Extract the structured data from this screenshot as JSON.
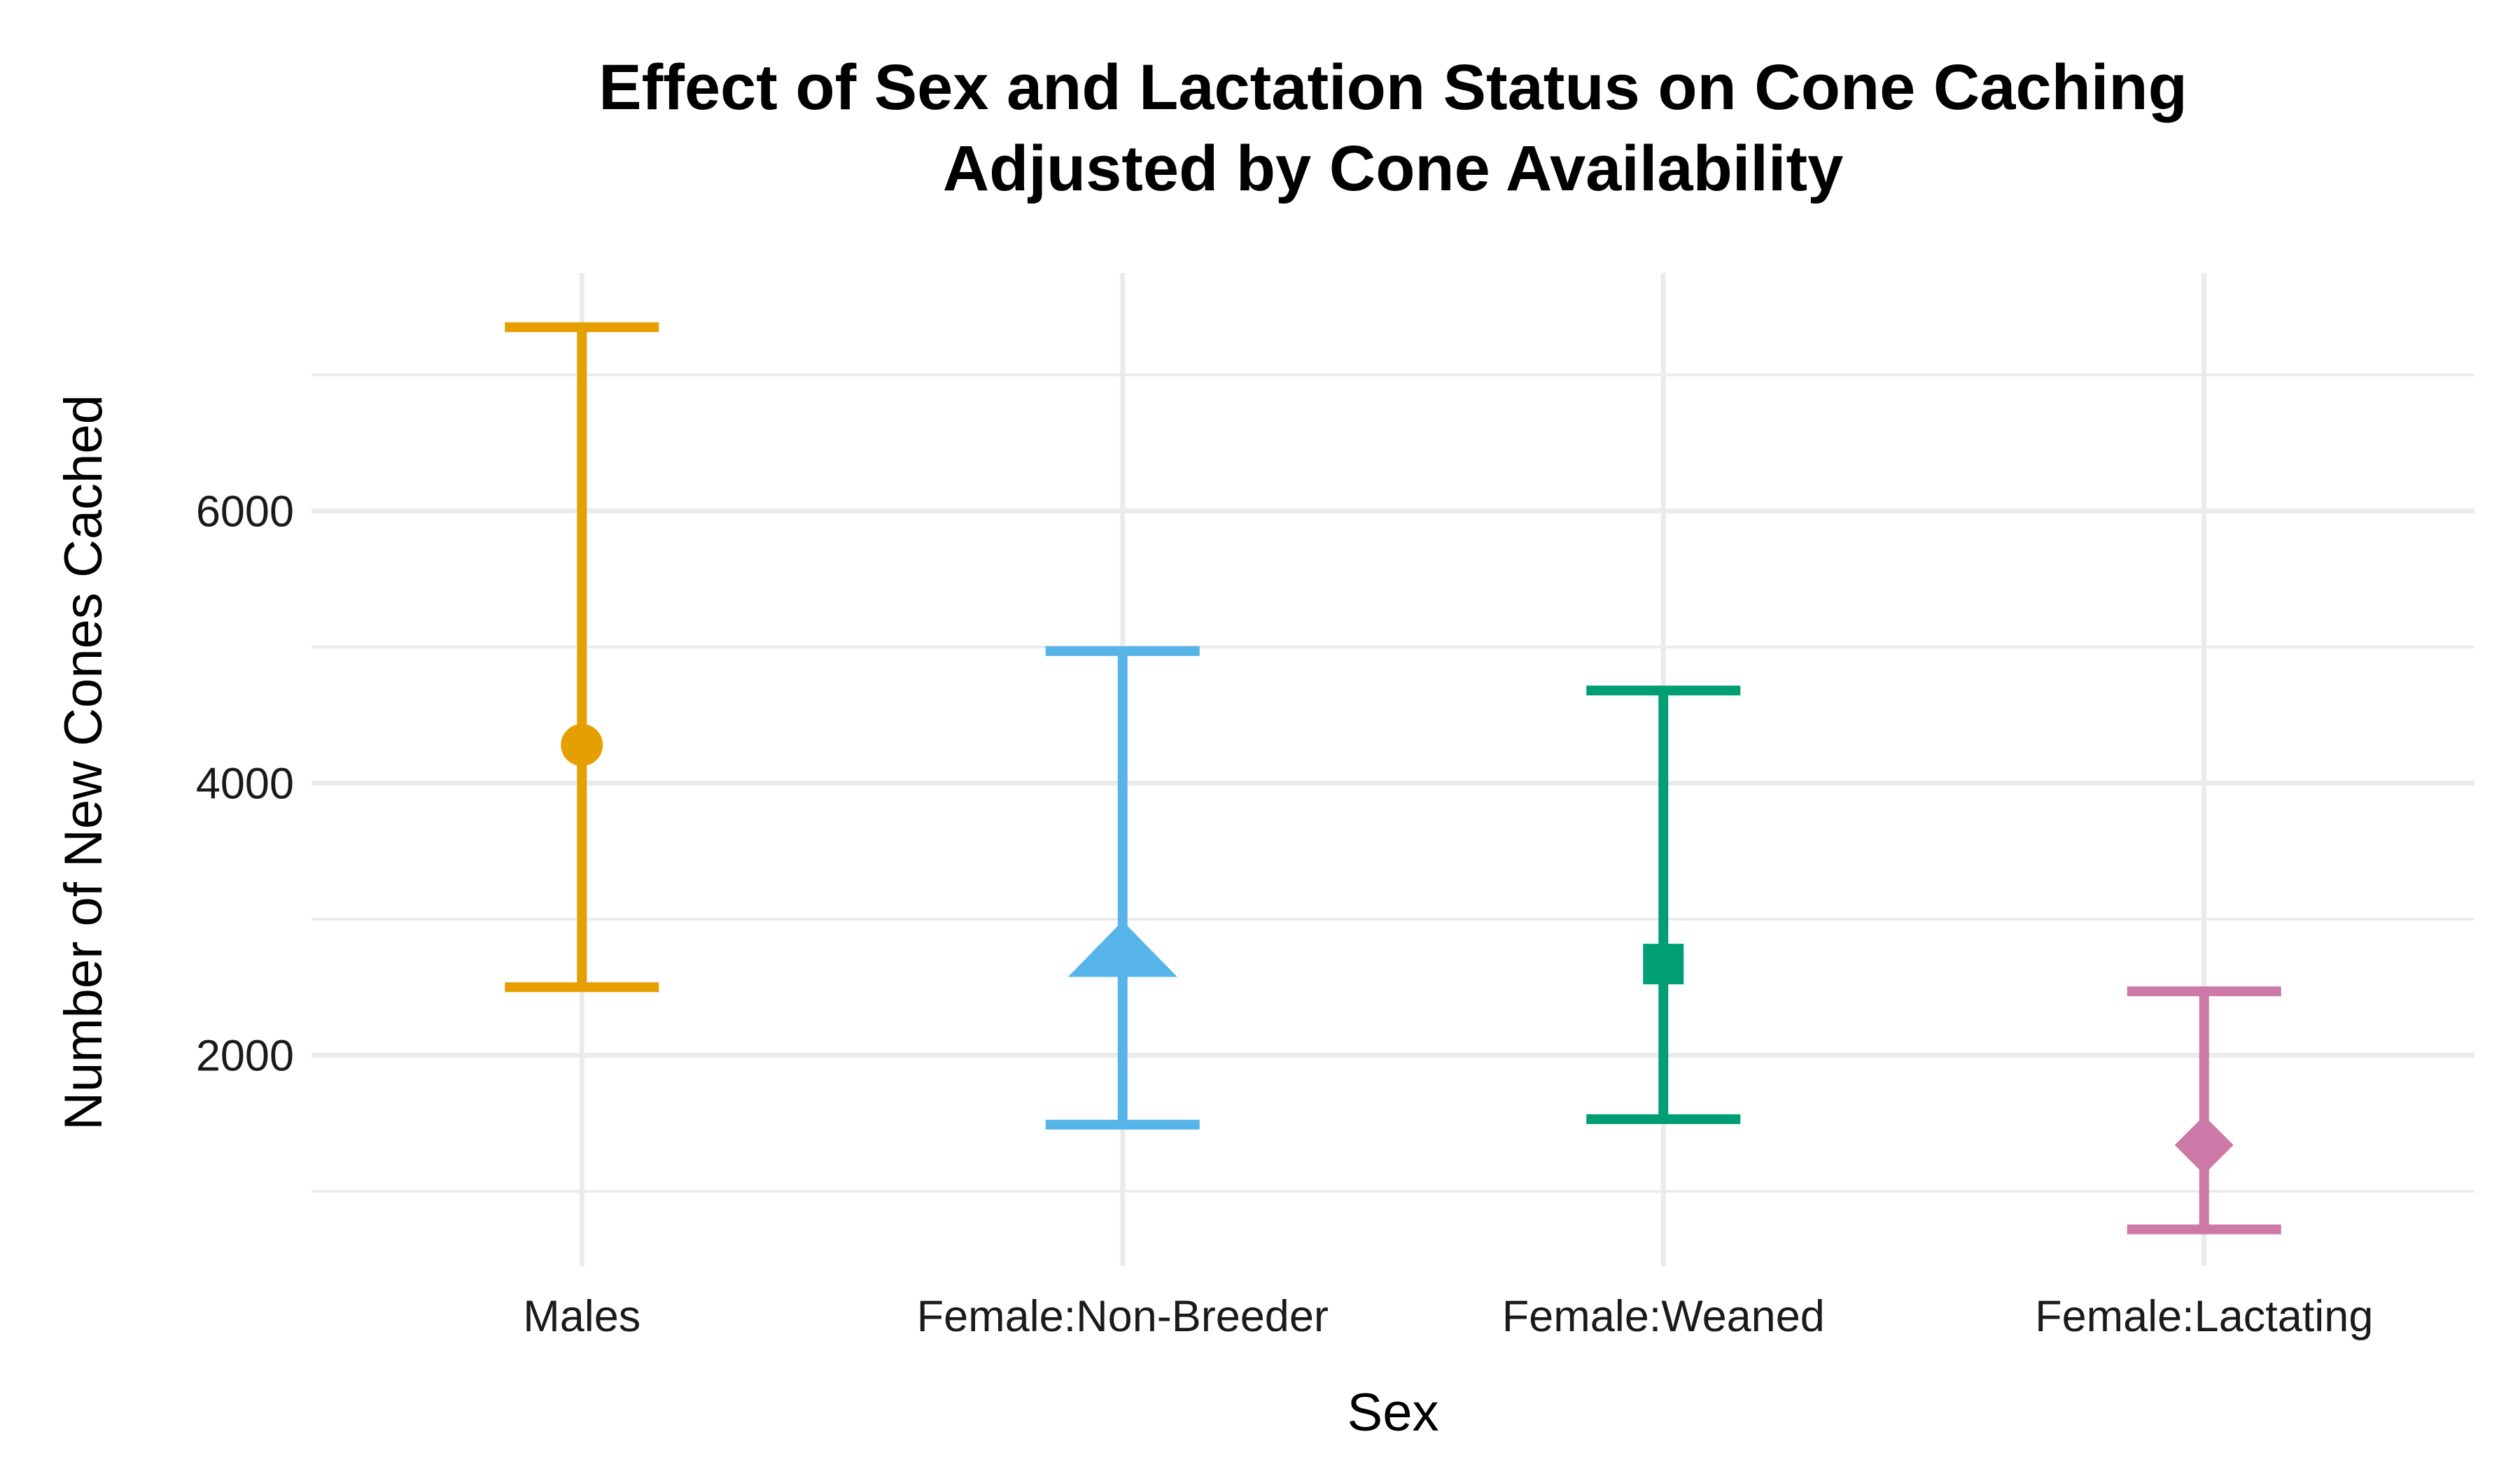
{
  "chart_data": {
    "type": "errorbar",
    "title": "Effect of Sex and Lactation Status on Cone Caching",
    "subtitle": "Adjusted by Cone Availability",
    "xlabel": "Sex",
    "ylabel": "Number of New Cones Cached",
    "categories": [
      "Males",
      "Female:Non-Breeder",
      "Female:Weaned",
      "Female:Lactating"
    ],
    "estimates": [
      4280,
      2740,
      2670,
      1340
    ],
    "lower": [
      2500,
      1490,
      1530,
      720
    ],
    "upper": [
      7350,
      4970,
      4680,
      2470
    ],
    "shapes": [
      "circle",
      "triangle",
      "square",
      "diamond"
    ],
    "colors": [
      "#E69F00",
      "#56B4E9",
      "#009E73",
      "#CC79A7"
    ],
    "y_ticks": [
      2000,
      4000,
      6000
    ],
    "ylim": [
      450,
      7750
    ],
    "grid": true,
    "legend": "none"
  }
}
